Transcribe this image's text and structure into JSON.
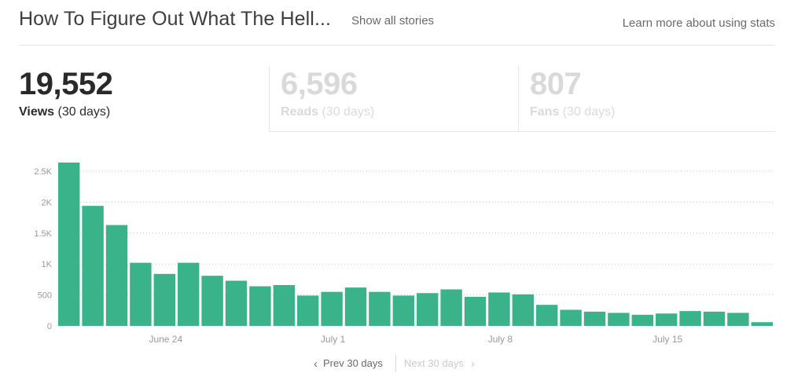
{
  "header": {
    "title": "How To Figure Out What The Hell...",
    "show_all_label": "Show all stories",
    "learn_more_label": "Learn more about using stats"
  },
  "stats": {
    "views": {
      "value": "19,552",
      "label": "Views",
      "period": " (30 days)"
    },
    "reads": {
      "value": "6,596",
      "label": "Reads",
      "period": " (30 days)"
    },
    "fans": {
      "value": "807",
      "label": "Fans",
      "period": " (30 days)"
    }
  },
  "colors": {
    "bar": "#3bb38a",
    "grid": "#c8c8c8",
    "text_muted": "#999999"
  },
  "chart_data": {
    "type": "bar",
    "title": "",
    "xlabel": "",
    "ylabel": "",
    "ylim": [
      0,
      2500
    ],
    "yticks": [
      0,
      500,
      1000,
      1500,
      2000,
      2500
    ],
    "ytick_labels": [
      "0",
      "500",
      "1K",
      "1.5K",
      "2K",
      "2.5K"
    ],
    "grid": true,
    "x_tick_labels": [
      {
        "label": "June 24",
        "index": 4
      },
      {
        "label": "July 1",
        "index": 11
      },
      {
        "label": "July 8",
        "index": 18
      },
      {
        "label": "July 15",
        "index": 25
      }
    ],
    "values": [
      2640,
      1940,
      1630,
      1020,
      840,
      1020,
      810,
      730,
      640,
      660,
      490,
      550,
      620,
      550,
      490,
      530,
      590,
      470,
      540,
      510,
      340,
      260,
      230,
      210,
      180,
      200,
      240,
      230,
      210,
      60
    ]
  },
  "pager": {
    "prev_label": "Prev 30 days",
    "next_label": "Next 30 days"
  }
}
